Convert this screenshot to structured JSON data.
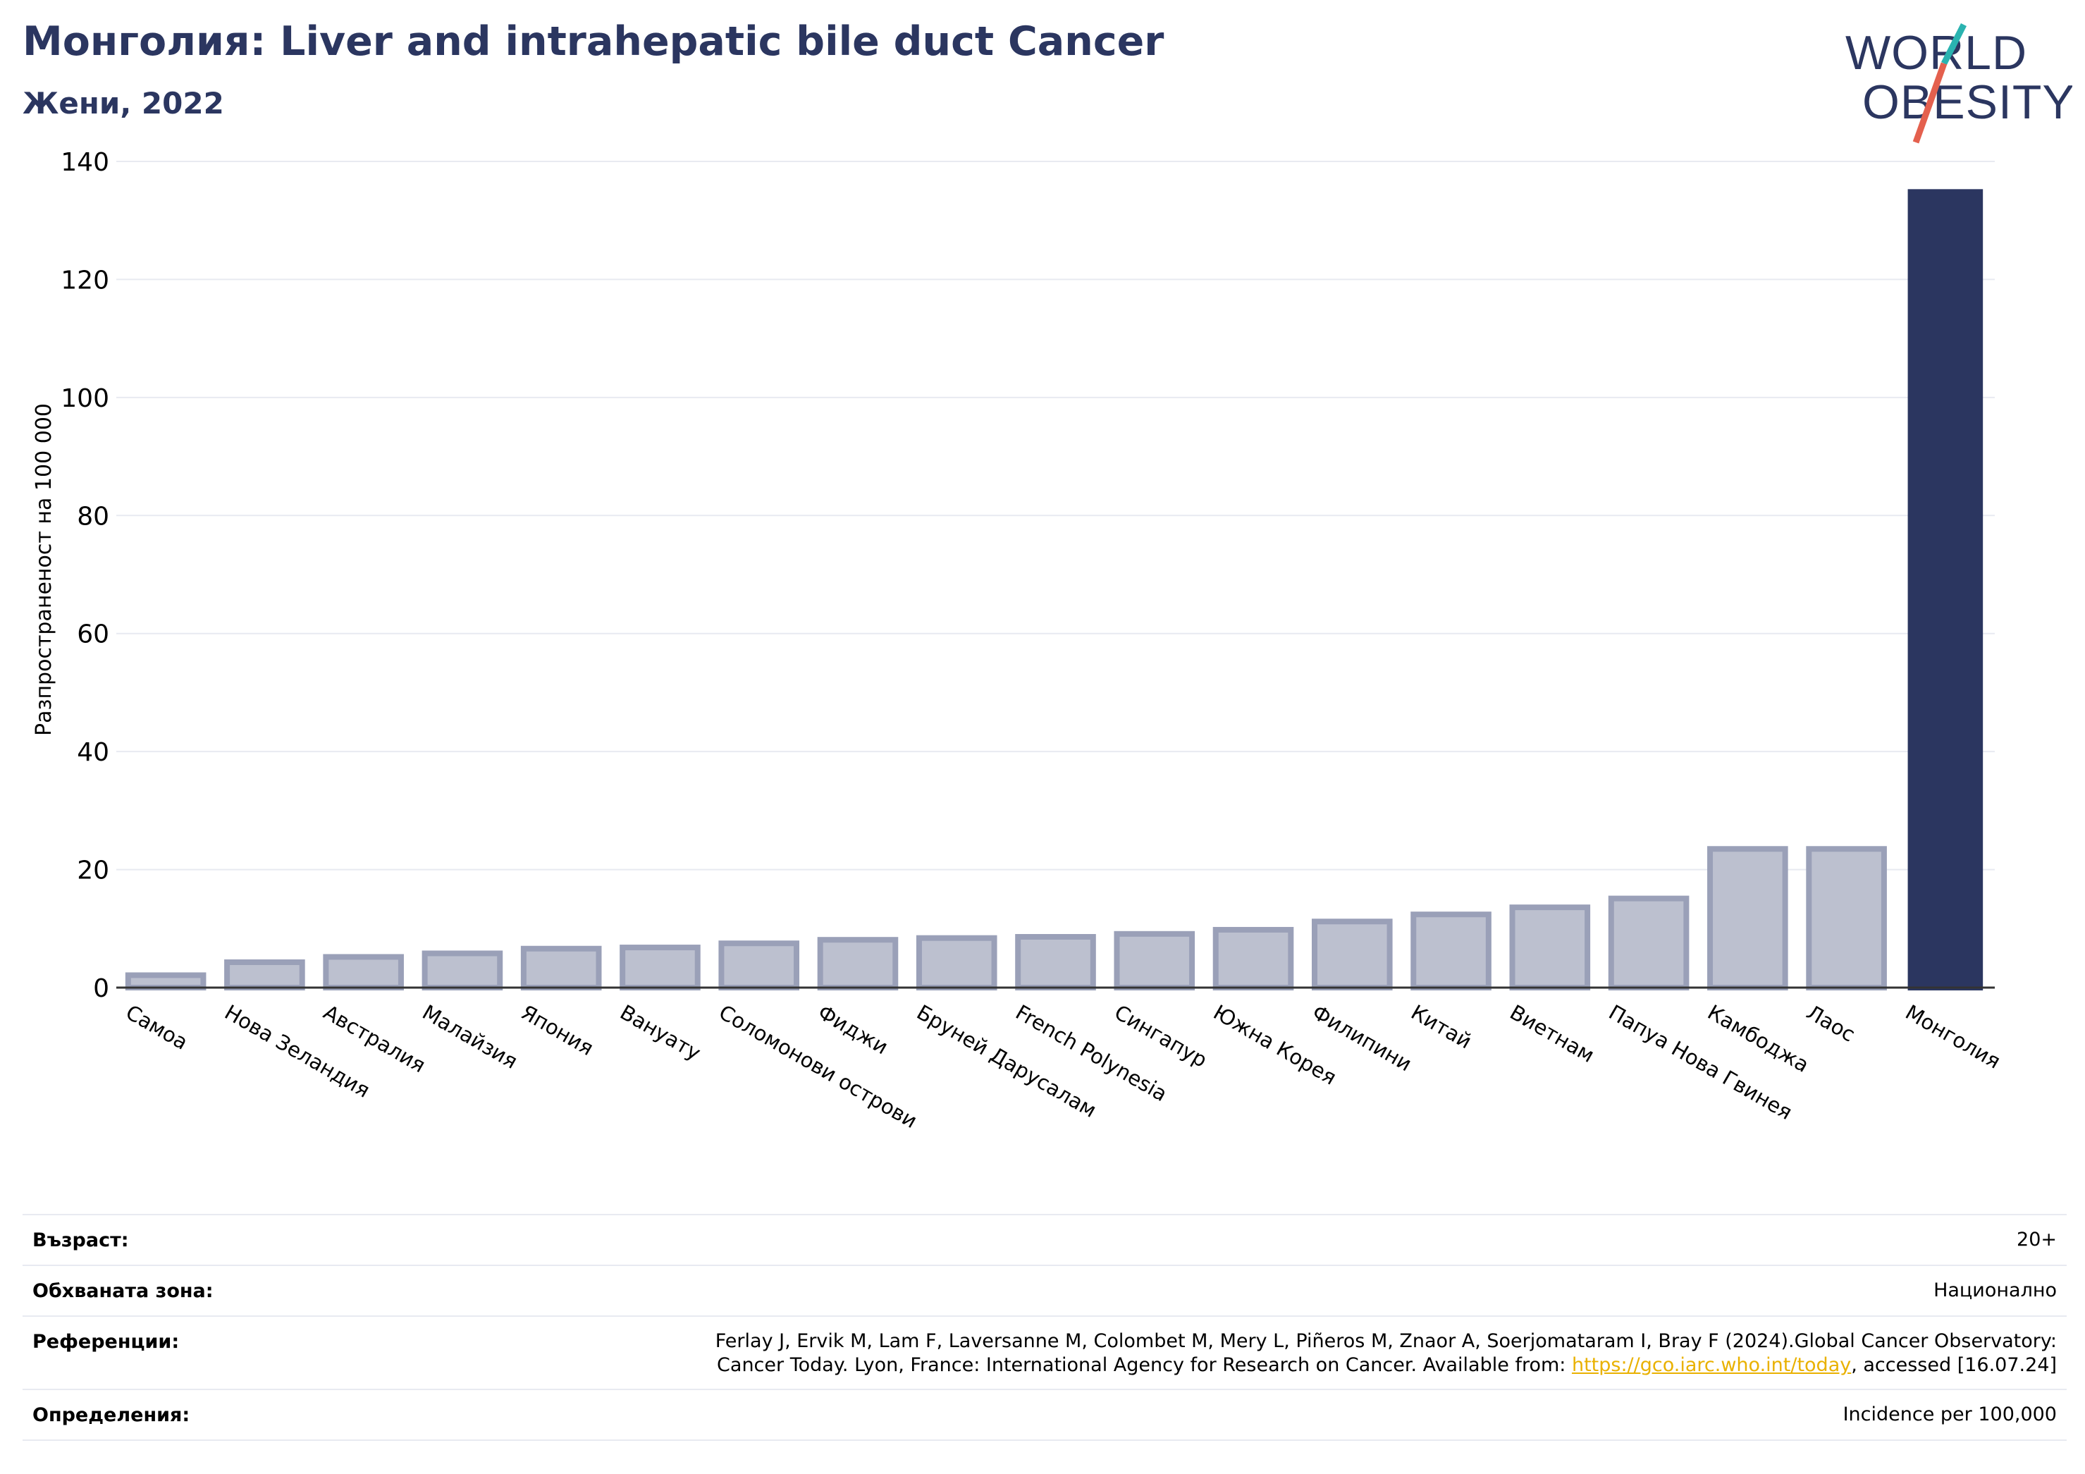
{
  "header": {
    "title": "Монголия: Liver and intrahepatic bile duct Cancer",
    "subtitle": "Жени, 2022"
  },
  "logo": {
    "line1": "WORLD",
    "line2": "OBESITY",
    "colors": {
      "text": "#2b3660",
      "slash_top": "#2ab3b0",
      "slash_bottom": "#e4604e"
    }
  },
  "chart_data": {
    "type": "bar",
    "ylabel": "Разпространеност  на 100 000",
    "ylim": [
      0,
      140
    ],
    "yticks": [
      0,
      20,
      40,
      60,
      80,
      100,
      120,
      140
    ],
    "grid": true,
    "categories": [
      "Самоа",
      "Нова Зеландия",
      "Австралия",
      "Малайзия",
      "Япония",
      "Вануату",
      "Соломонови острови",
      "Фиджи",
      "Бруней Дарусалам",
      "French Polynesia",
      "Сингапур",
      "Южна Корея",
      "Филипини",
      "Китай",
      "Виетнам",
      "Папуа Нова Гвинея",
      "Камбоджа",
      "Лаос",
      "Монголия"
    ],
    "values": [
      2.1,
      4.3,
      5.2,
      5.8,
      6.6,
      6.8,
      7.5,
      8.1,
      8.4,
      8.6,
      9.1,
      9.8,
      11.2,
      12.4,
      13.6,
      15.1,
      23.5,
      23.5,
      135.3
    ],
    "highlight": "Монголия",
    "colors": {
      "bar": "#bcc0cf",
      "bar_edge": "#9aa0b8",
      "highlight": "#2b3660",
      "grid": "#e8eaf1",
      "axis": "#333333"
    }
  },
  "info": {
    "age_label": "Възраст:",
    "age_value": "20+",
    "area_label": "Обхваната зона:",
    "area_value": "Национално",
    "refs_label": "Референции:",
    "refs_line1": "Ferlay J, Ervik M, Lam F, Laversanne M, Colombet M, Mery L, Piñeros M, Znaor A, Soerjomataram I, Bray F (2024).Global Cancer Observatory:",
    "refs_line2_pre": "Cancer Today. Lyon, France: International Agency for Research on Cancer. Available from: ",
    "refs_link": "https://gco.iarc.who.int/today",
    "refs_line2_post": ", accessed [16.07.24]",
    "defs_label": "Определения:",
    "defs_value": "Incidence per 100,000",
    "link_color": "#e9b100"
  }
}
